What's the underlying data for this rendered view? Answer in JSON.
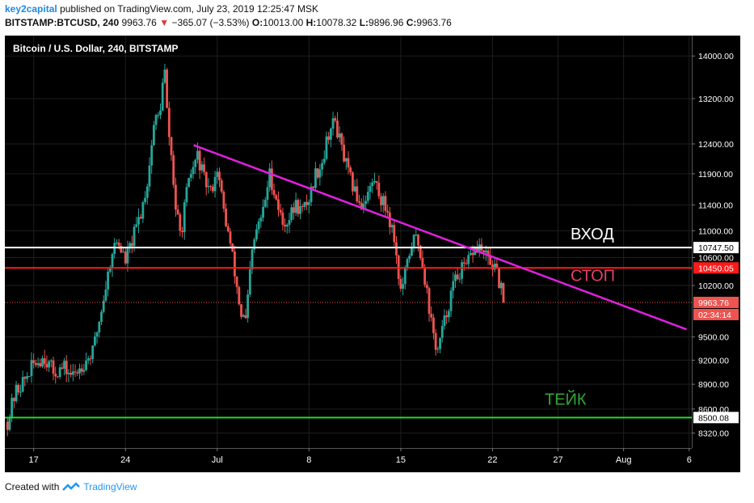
{
  "header": {
    "author": "key2capital",
    "published_text": "published on TradingView.com, July 23, 2019 12:25:47 MSK",
    "symbol": "BITSTAMP:BTCUSD, 240",
    "last_price": "9963.76",
    "change_arrow": "▼",
    "change": "−365.07 (−3.53%)",
    "o_label": "O:",
    "o_value": "10013.00",
    "h_label": "H:",
    "h_value": "10078.32",
    "l_label": "L:",
    "l_value": "9896.96",
    "c_label": "C:",
    "c_value": "9963.76"
  },
  "footer": {
    "created_with": "Created with",
    "brand": "TradingView"
  },
  "colors": {
    "background": "#000000",
    "up": "#26a69a",
    "down": "#ef5350",
    "trendline": "#e020e0",
    "entry": "#ffffff",
    "stop": "#ff1a1a",
    "take": "#22dd22"
  },
  "chart_data": {
    "type": "candlestick",
    "title": "Bitcoin / U.S. Dollar, 240, BITSTAMP",
    "y_scale": "log",
    "y_ticks": [
      8320,
      8600,
      8900,
      9200,
      9500,
      10200,
      10600,
      11000,
      11400,
      11900,
      12400,
      13200,
      14000
    ],
    "y_tick_labels": [
      "8320.00",
      "8600.00",
      "8900.00",
      "9200.00",
      "9500.00",
      "10200.00",
      "10600.00",
      "11000.00",
      "11400.00",
      "11900.00",
      "12400.00",
      "13200.00",
      "14000.00"
    ],
    "ylim": [
      8150,
      14400
    ],
    "x_ticks": [
      {
        "label": "17",
        "day": 17
      },
      {
        "label": "24",
        "day": 24
      },
      {
        "label": "Jul",
        "day": 31
      },
      {
        "label": "8",
        "day": 38
      },
      {
        "label": "15",
        "day": 45
      },
      {
        "label": "22",
        "day": 52
      },
      {
        "label": "27",
        "day": 57
      },
      {
        "label": "Aug",
        "day": 62
      },
      {
        "label": "6",
        "day": 67
      }
    ],
    "xlim": [
      14.8,
      67.2
    ],
    "price_path": [
      [
        15.0,
        8450
      ],
      [
        15.6,
        8800
      ],
      [
        16.3,
        8950
      ],
      [
        17.0,
        9150
      ],
      [
        17.8,
        9250
      ],
      [
        18.5,
        9050
      ],
      [
        19.3,
        9100
      ],
      [
        20.0,
        9000
      ],
      [
        20.7,
        9150
      ],
      [
        21.5,
        9300
      ],
      [
        22.2,
        9900
      ],
      [
        23.0,
        10700
      ],
      [
        23.4,
        10850
      ],
      [
        24.0,
        10550
      ],
      [
        24.6,
        10900
      ],
      [
        25.2,
        11300
      ],
      [
        25.7,
        11800
      ],
      [
        26.2,
        12800
      ],
      [
        26.6,
        12900
      ],
      [
        26.8,
        13400
      ],
      [
        27.0,
        13700
      ],
      [
        27.2,
        12800
      ],
      [
        27.5,
        12200
      ],
      [
        27.8,
        11400
      ],
      [
        28.2,
        10900
      ],
      [
        28.6,
        11500
      ],
      [
        29.0,
        11900
      ],
      [
        29.5,
        12200
      ],
      [
        30.0,
        11800
      ],
      [
        30.5,
        11600
      ],
      [
        31.0,
        12000
      ],
      [
        31.5,
        11300
      ],
      [
        32.0,
        10800
      ],
      [
        32.4,
        10300
      ],
      [
        32.8,
        9800
      ],
      [
        33.2,
        9700
      ],
      [
        33.6,
        10600
      ],
      [
        34.0,
        11000
      ],
      [
        34.5,
        11300
      ],
      [
        35.0,
        11900
      ],
      [
        35.5,
        11500
      ],
      [
        36.0,
        11100
      ],
      [
        36.5,
        11200
      ],
      [
        37.0,
        11400
      ],
      [
        37.5,
        11300
      ],
      [
        38.0,
        11500
      ],
      [
        38.5,
        11900
      ],
      [
        39.0,
        12100
      ],
      [
        39.5,
        12600
      ],
      [
        40.0,
        12800
      ],
      [
        40.5,
        12300
      ],
      [
        41.0,
        11900
      ],
      [
        41.5,
        11600
      ],
      [
        42.0,
        11400
      ],
      [
        42.5,
        11600
      ],
      [
        43.0,
        11800
      ],
      [
        43.5,
        11500
      ],
      [
        44.0,
        11300
      ],
      [
        44.5,
        10900
      ],
      [
        45.0,
        10100
      ],
      [
        45.4,
        10400
      ],
      [
        45.8,
        10800
      ],
      [
        46.2,
        10900
      ],
      [
        46.6,
        10600
      ],
      [
        47.0,
        10100
      ],
      [
        47.4,
        9600
      ],
      [
        47.8,
        9300
      ],
      [
        48.2,
        9600
      ],
      [
        48.6,
        9900
      ],
      [
        49.0,
        10200
      ],
      [
        49.5,
        10400
      ],
      [
        50.0,
        10450
      ],
      [
        50.5,
        10700
      ],
      [
        51.0,
        10750
      ],
      [
        51.5,
        10600
      ],
      [
        52.0,
        10500
      ],
      [
        52.5,
        10250
      ],
      [
        52.9,
        9963.76
      ]
    ],
    "trendline": [
      [
        29.2,
        12380
      ],
      [
        66.8,
        9600
      ]
    ],
    "levels": [
      {
        "name": "entry",
        "label": "ВХОД",
        "value": 10747.5,
        "value_label": "10747.50"
      },
      {
        "name": "stop",
        "label": "СТОП",
        "value": 10450.05,
        "value_label": "10450.05"
      },
      {
        "name": "take",
        "label": "ТЕЙК",
        "value": 8500.08,
        "value_label": "8500.08"
      }
    ],
    "current_price_label": "9963.76",
    "countdown_label": "02:34:14"
  }
}
